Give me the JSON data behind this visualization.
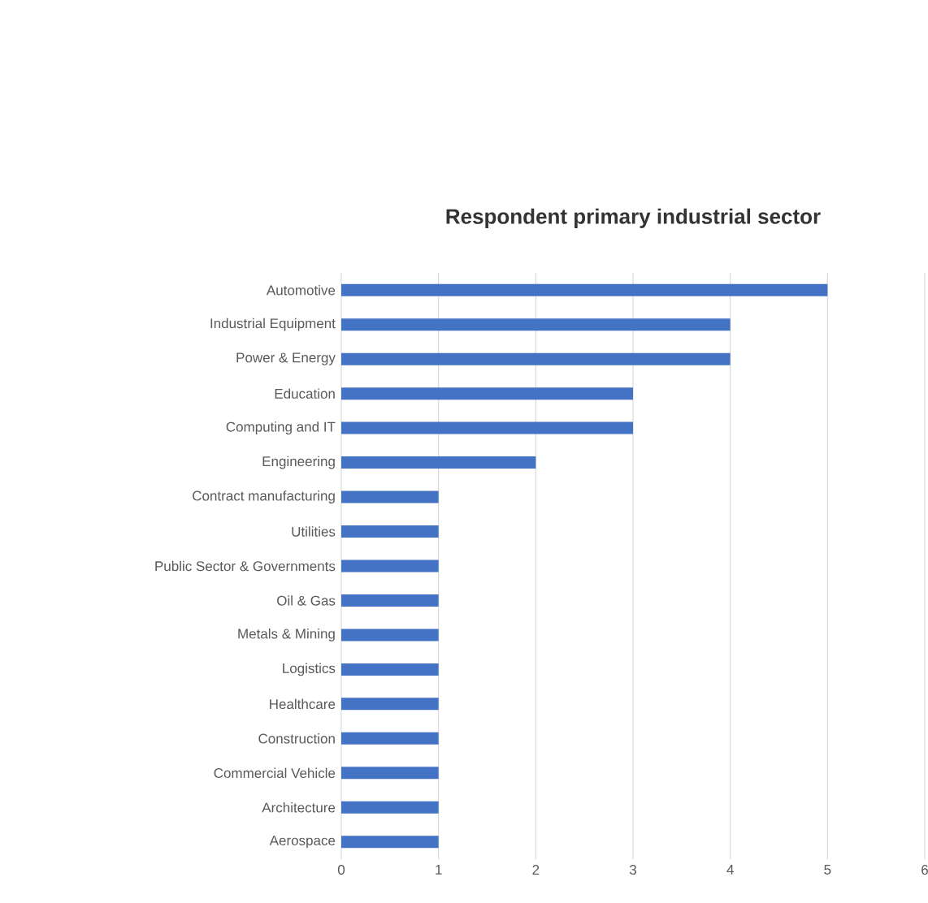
{
  "chart_data": {
    "type": "bar",
    "orientation": "horizontal",
    "title": "Respondent primary industrial sector",
    "categories": [
      "Automotive",
      "Industrial Equipment",
      "Power & Energy",
      "Education",
      "Computing and IT",
      "Engineering",
      "Contract manufacturing",
      "Utilities",
      "Public Sector & Governments",
      "Oil & Gas",
      "Metals & Mining",
      "Logistics",
      "Healthcare",
      "Construction",
      "Commercial Vehicle",
      "Architecture",
      "Aerospace"
    ],
    "values": [
      5,
      4,
      4,
      3,
      3,
      2,
      1,
      1,
      1,
      1,
      1,
      1,
      1,
      1,
      1,
      1,
      1
    ],
    "color": "#4472c4",
    "xlim": [
      0,
      6
    ],
    "xticks": [
      0,
      1,
      2,
      3,
      4,
      5,
      6
    ],
    "grid": "x"
  }
}
